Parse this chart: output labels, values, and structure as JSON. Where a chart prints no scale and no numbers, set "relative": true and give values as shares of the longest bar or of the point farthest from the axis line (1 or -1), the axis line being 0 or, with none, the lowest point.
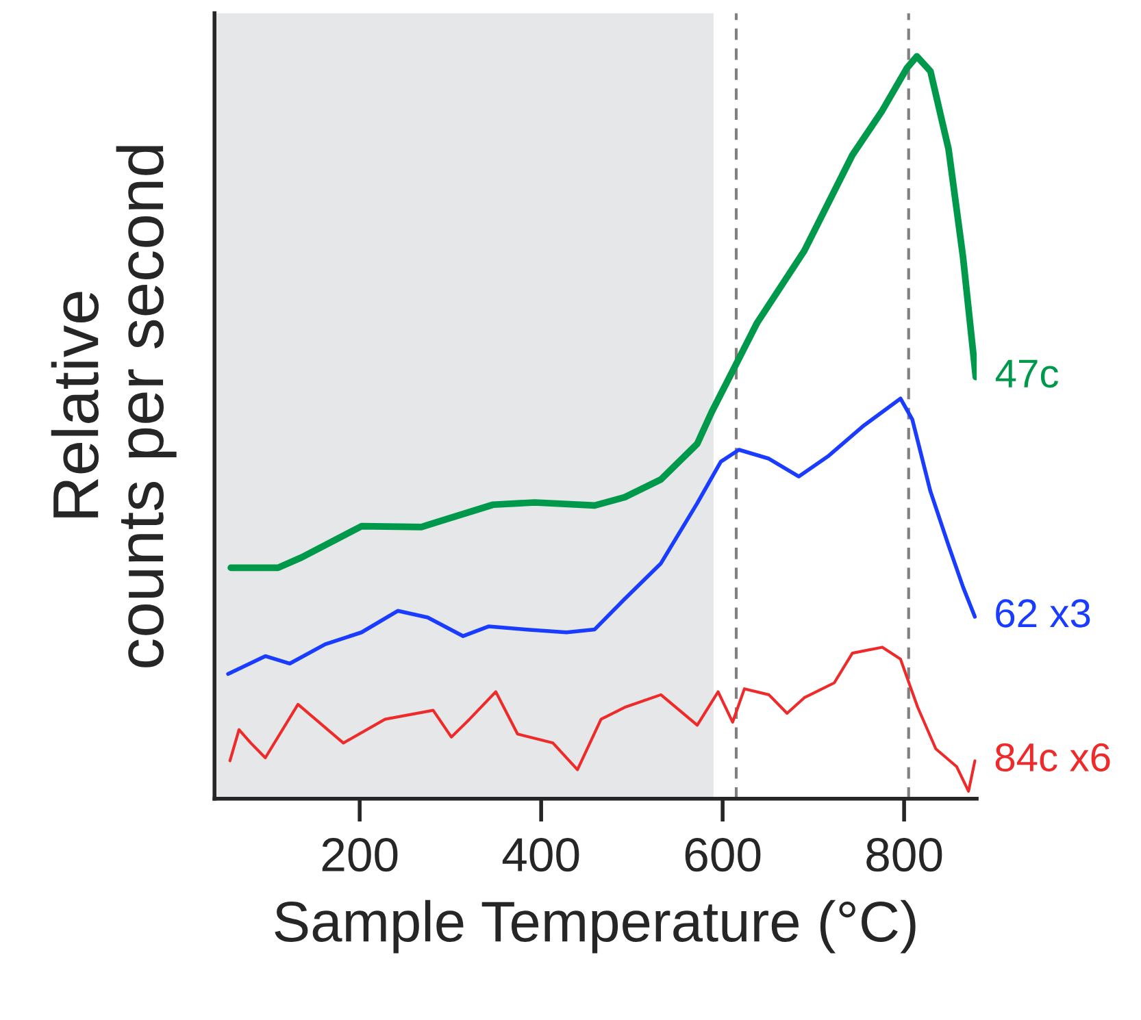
{
  "chart_data": {
    "type": "line",
    "relative": true,
    "xlabel": "Sample Temperature (°C)",
    "ylabel": "Relative\ncounts per second",
    "xlim": [
      40,
      880
    ],
    "xticks": [
      200,
      400,
      600,
      800
    ],
    "series": [
      {
        "name": "47c",
        "color": "#00994c",
        "x": [
          58,
          110,
          136,
          202,
          268,
          347,
          393,
          459,
          492,
          532,
          572,
          588,
          611,
          638,
          690,
          743,
          776,
          803,
          814,
          829,
          849,
          865,
          879
        ],
        "values": [
          0.311,
          0.311,
          0.325,
          0.367,
          0.366,
          0.396,
          0.399,
          0.395,
          0.406,
          0.43,
          0.478,
          0.521,
          0.576,
          0.641,
          0.738,
          0.867,
          0.927,
          0.984,
          1.0,
          0.98,
          0.875,
          0.729,
          0.568
        ]
      },
      {
        "name": "62 x3",
        "color": "#1a3cff",
        "x": [
          55,
          96,
          123,
          162,
          202,
          242,
          275,
          314,
          342,
          382,
          428,
          459,
          492,
          532,
          572,
          598,
          618,
          651,
          684,
          717,
          756,
          796,
          809,
          829,
          849,
          865,
          878
        ],
        "values": [
          0.168,
          0.192,
          0.182,
          0.208,
          0.224,
          0.253,
          0.244,
          0.219,
          0.232,
          0.228,
          0.224,
          0.228,
          0.269,
          0.317,
          0.398,
          0.454,
          0.47,
          0.458,
          0.434,
          0.462,
          0.503,
          0.539,
          0.511,
          0.414,
          0.341,
          0.285,
          0.245
        ]
      },
      {
        "name": "84c x6",
        "color": "#ee2a2a",
        "x": [
          57,
          67,
          80,
          96,
          132,
          182,
          228,
          281,
          301,
          321,
          350,
          374,
          413,
          440,
          466,
          492,
          532,
          572,
          595,
          611,
          624,
          651,
          671,
          690,
          723,
          743,
          776,
          796,
          815,
          835,
          858,
          871,
          878
        ],
        "values": [
          0.051,
          0.093,
          0.075,
          0.055,
          0.127,
          0.075,
          0.107,
          0.119,
          0.083,
          0.107,
          0.144,
          0.087,
          0.075,
          0.039,
          0.107,
          0.123,
          0.14,
          0.099,
          0.144,
          0.103,
          0.148,
          0.14,
          0.115,
          0.136,
          0.156,
          0.196,
          0.204,
          0.188,
          0.123,
          0.067,
          0.043,
          0.01,
          0.051
        ]
      }
    ],
    "bands": [
      {
        "axis": "x",
        "from": 40,
        "to": 590,
        "color": "#e6e7e9"
      }
    ],
    "ref_lines": [
      {
        "axis": "x",
        "value": 615,
        "color": "#808080",
        "line_style": "dashed"
      },
      {
        "axis": "x",
        "value": 805,
        "color": "#808080",
        "line_style": "dashed"
      }
    ],
    "grid": false,
    "legend": false,
    "marker": "none",
    "line_style": "solid"
  }
}
